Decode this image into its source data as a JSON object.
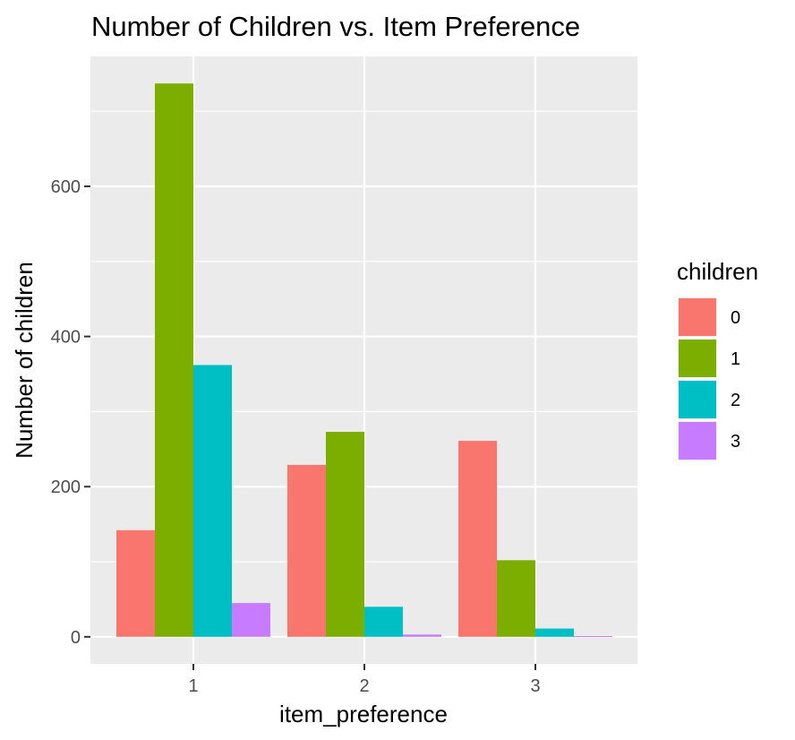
{
  "chart_data": {
    "type": "bar",
    "title": "Number of Children vs. Item Preference",
    "xlabel": "item_preference",
    "ylabel": "Number of children",
    "categories": [
      "1",
      "2",
      "3"
    ],
    "series": [
      {
        "name": "0",
        "values": [
          142,
          229,
          261
        ]
      },
      {
        "name": "1",
        "values": [
          737,
          273,
          102
        ]
      },
      {
        "name": "2",
        "values": [
          362,
          40,
          11
        ]
      },
      {
        "name": "3",
        "values": [
          45,
          3,
          1
        ]
      }
    ],
    "ylim": [
      -36,
      773
    ],
    "y_ticks": [
      0,
      200,
      400,
      600
    ],
    "y_tick_labels": [
      "0",
      "200",
      "400",
      "600"
    ],
    "legend": {
      "title": "children",
      "position": "right"
    },
    "grid": true,
    "colors": {
      "0": "#F8766D",
      "1": "#7CAE00",
      "2": "#00BFC4",
      "3": "#C77CFF"
    },
    "panel_background": "#EBEBEB",
    "grid_color": "#FFFFFF"
  }
}
